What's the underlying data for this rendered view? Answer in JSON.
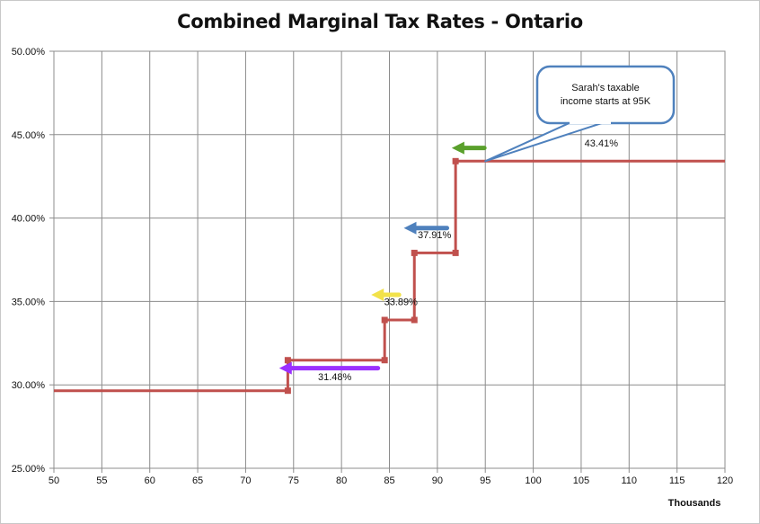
{
  "chart_data": {
    "type": "line",
    "title": "Combined Marginal Tax Rates - Ontario",
    "xlabel": "Thousands",
    "ylabel": "",
    "xlim": [
      50,
      120
    ],
    "ylim": [
      25,
      50
    ],
    "x_ticks": [
      "50",
      "55",
      "60",
      "65",
      "70",
      "75",
      "80",
      "85",
      "90",
      "95",
      "100",
      "105",
      "110",
      "115",
      "120"
    ],
    "y_ticks": [
      "25.00%",
      "30.00%",
      "35.00%",
      "40.00%",
      "45.00%",
      "50.00%"
    ],
    "grid": true,
    "legend": "none",
    "series": [
      {
        "color": "#c0504d",
        "step_points": [
          {
            "x": 50,
            "y": 29.65
          },
          {
            "x": 74.4,
            "y": 29.65
          },
          {
            "x": 74.4,
            "y": 31.48
          },
          {
            "x": 84.5,
            "y": 31.48
          },
          {
            "x": 84.5,
            "y": 33.89
          },
          {
            "x": 87.6,
            "y": 33.89
          },
          {
            "x": 87.6,
            "y": 37.91
          },
          {
            "x": 91.9,
            "y": 37.91
          },
          {
            "x": 91.9,
            "y": 43.41
          },
          {
            "x": 120,
            "y": 43.41
          }
        ],
        "markers": [
          {
            "x": 74.4,
            "y": 29.65
          },
          {
            "x": 74.4,
            "y": 31.48
          },
          {
            "x": 84.5,
            "y": 31.48
          },
          {
            "x": 84.5,
            "y": 33.89
          },
          {
            "x": 87.6,
            "y": 33.89
          },
          {
            "x": 87.6,
            "y": 37.91
          },
          {
            "x": 91.9,
            "y": 37.91
          },
          {
            "x": 91.9,
            "y": 43.41
          }
        ]
      }
    ],
    "data_labels": [
      {
        "text": "31.48%",
        "x": 79.3,
        "y": 30.5
      },
      {
        "text": "33.89%",
        "x": 86.2,
        "y": 35.0
      },
      {
        "text": "37.91%",
        "x": 89.7,
        "y": 39.0
      },
      {
        "text": "43.41%",
        "x": 107.1,
        "y": 44.5
      }
    ],
    "arrows": [
      {
        "color": "#9b30ff",
        "x_from": 83.8,
        "x_to": 73.5,
        "y": 31.0
      },
      {
        "color": "#f2e24a",
        "x_from": 86.0,
        "x_to": 83.1,
        "y": 35.4
      },
      {
        "color": "#4f81bd",
        "x_from": 91.0,
        "x_to": 86.5,
        "y": 39.4
      },
      {
        "color": "#5aa02c",
        "x_from": 94.9,
        "x_to": 91.5,
        "y": 44.2
      }
    ],
    "callout": {
      "text_lines": [
        "Sarah's taxable",
        "income starts at 95K"
      ],
      "pointer_x": 95,
      "pointer_y": 43.41,
      "border_color": "#4f81bd"
    }
  }
}
